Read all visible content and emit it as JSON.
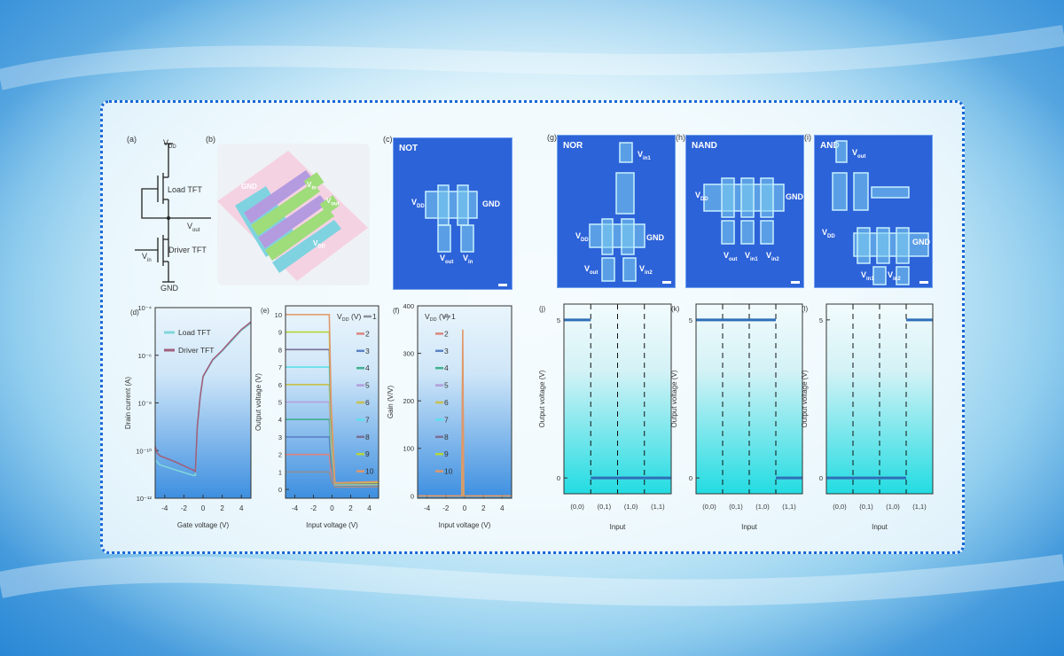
{
  "panels": {
    "a": {
      "tag": "(a)",
      "vdd": {
        "main": "V",
        "sub": "DD"
      },
      "load": "Load TFT",
      "vout": {
        "main": "V",
        "sub": "out"
      },
      "driver": "Driver TFT",
      "vin": {
        "main": "V",
        "sub": "in"
      },
      "gnd": "GND"
    },
    "b": {
      "tag": "(b)",
      "gnd": "GND",
      "vin": {
        "main": "V",
        "sub": "in"
      },
      "vout": {
        "main": "V",
        "sub": "out"
      },
      "vdd": {
        "main": "V",
        "sub": "DD"
      }
    },
    "c": {
      "tag": "(c)",
      "name": "NOT",
      "vdd": {
        "main": "V",
        "sub": "DD"
      },
      "gnd": "GND",
      "vout": {
        "main": "V",
        "sub": "out"
      },
      "vin": {
        "main": "V",
        "sub": "in"
      }
    },
    "g": {
      "tag": "(g)",
      "name": "NOR",
      "vin1": {
        "main": "V",
        "sub": "in1"
      },
      "vdd": {
        "main": "V",
        "sub": "DD"
      },
      "gnd": "GND",
      "vout": {
        "main": "V",
        "sub": "out"
      },
      "vin2": {
        "main": "V",
        "sub": "in2"
      }
    },
    "h": {
      "tag": "(h)",
      "name": "NAND",
      "vdd": {
        "main": "V",
        "sub": "DD"
      },
      "gnd": "GND",
      "vout": {
        "main": "V",
        "sub": "out"
      },
      "vin1": {
        "main": "V",
        "sub": "in1"
      },
      "vin2": {
        "main": "V",
        "sub": "in2"
      }
    },
    "i": {
      "tag": "(i)",
      "name": "AND",
      "vout": {
        "main": "V",
        "sub": "out"
      },
      "vdd": {
        "main": "V",
        "sub": "DD"
      },
      "gnd": "GND",
      "vin1": {
        "main": "V",
        "sub": "in1"
      },
      "vin2": {
        "main": "V",
        "sub": "in2"
      }
    }
  },
  "colors": {
    "border": "#1766d6",
    "micrograph": "#2d63d8",
    "plot_top": "#eaf5fc",
    "plot_bottom": "#3d8fe0",
    "logic_bottom": "#22dce2"
  },
  "chart_data": [
    {
      "id": "d",
      "tag": "(d)",
      "type": "line",
      "xlabel": "Gate voltage (V)",
      "ylabel": "Drain current (A)",
      "xlim": [
        -5,
        5
      ],
      "ylim": [
        1e-12,
        0.0001
      ],
      "yscale": "log",
      "xticks": [
        -4,
        -2,
        0,
        2,
        4
      ],
      "yticks": [
        0.0001,
        1e-06,
        1e-08,
        1e-10,
        1e-12
      ],
      "ytick_labels": [
        "10⁻⁴",
        "10⁻⁶",
        "10⁻⁸",
        "10⁻¹⁰",
        "10⁻¹²"
      ],
      "legend": "top-left",
      "series": [
        {
          "name": "Load TFT",
          "color": "#7fd6dc",
          "x": [
            -5,
            -4.5,
            -3,
            -1,
            -0.8,
            -0.6,
            -0.3,
            0,
            1,
            2,
            3,
            4,
            5
          ],
          "y": [
            4e-11,
            2.5e-11,
            1.6e-11,
            9e-12,
            9e-12,
            1e-09,
            1.8e-08,
            1.2e-07,
            6e-07,
            1.5e-06,
            4e-06,
            1.1e-05,
            2.2e-05
          ]
        },
        {
          "name": "Driver TFT",
          "color": "#a0607c",
          "x": [
            -5,
            -4.8,
            -4.5,
            -3,
            -1,
            -0.8,
            -0.6,
            -0.3,
            0,
            1,
            2,
            3,
            4,
            5
          ],
          "y": [
            1.5e-10,
            8e-11,
            6e-11,
            3.5e-11,
            1.5e-11,
            1.3e-11,
            1e-09,
            1.8e-08,
            1.3e-07,
            6.5e-07,
            1.6e-06,
            4.5e-06,
            1.2e-05,
            2.5e-05
          ]
        }
      ]
    },
    {
      "id": "e",
      "tag": "(e)",
      "type": "line",
      "xlabel": "Input voltage (V)",
      "ylabel": "Output voltage (V)",
      "xlim": [
        -5,
        5
      ],
      "ylim": [
        -0.5,
        10.5
      ],
      "xticks": [
        -4,
        -2,
        0,
        2,
        4
      ],
      "yticks": [
        0,
        1,
        2,
        3,
        4,
        5,
        6,
        7,
        8,
        9,
        10
      ],
      "legend_title": {
        "main": "V",
        "sub": "DD",
        "unit": " (V)"
      },
      "legend": "right",
      "series": [
        {
          "name": "1",
          "vdd": 1,
          "color": "#8a8f99",
          "x": [
            -5,
            -0.3,
            -0.1,
            0.3,
            5
          ],
          "y": [
            1,
            1,
            0.5,
            0.13,
            0.15
          ]
        },
        {
          "name": "2",
          "vdd": 2,
          "color": "#d9857e",
          "x": [
            -5,
            -0.3,
            -0.1,
            0.3,
            5
          ],
          "y": [
            2,
            2,
            1,
            0.16,
            0.18
          ]
        },
        {
          "name": "3",
          "vdd": 3,
          "color": "#5b82c6",
          "x": [
            -5,
            -0.3,
            -0.1,
            0.3,
            5
          ],
          "y": [
            3,
            3,
            1.5,
            0.19,
            0.21
          ]
        },
        {
          "name": "4",
          "vdd": 4,
          "color": "#3fb08f",
          "x": [
            -5,
            -0.3,
            -0.1,
            0.3,
            5
          ],
          "y": [
            4,
            4,
            2,
            0.22,
            0.24
          ]
        },
        {
          "name": "5",
          "vdd": 5,
          "color": "#b39ddb",
          "x": [
            -5,
            -0.3,
            -0.1,
            0.3,
            5
          ],
          "y": [
            5,
            5,
            2.5,
            0.25,
            0.27
          ]
        },
        {
          "name": "6",
          "vdd": 6,
          "color": "#c9c04a",
          "x": [
            -5,
            -0.3,
            -0.1,
            0.3,
            5
          ],
          "y": [
            6,
            6,
            3,
            0.28,
            0.3
          ]
        },
        {
          "name": "7",
          "vdd": 7,
          "color": "#5fe0ea",
          "x": [
            -5,
            -0.3,
            -0.1,
            0.3,
            5
          ],
          "y": [
            7,
            7,
            3.5,
            0.3,
            0.33
          ]
        },
        {
          "name": "8",
          "vdd": 8,
          "color": "#7a6f95",
          "x": [
            -5,
            -0.3,
            -0.1,
            0.3,
            5
          ],
          "y": [
            8,
            8,
            4,
            0.33,
            0.36
          ]
        },
        {
          "name": "9",
          "vdd": 9,
          "color": "#b5d63a",
          "x": [
            -5,
            -0.3,
            -0.1,
            0.3,
            5
          ],
          "y": [
            9,
            9,
            4.5,
            0.36,
            0.4
          ]
        },
        {
          "name": "10",
          "vdd": 10,
          "color": "#e0976a",
          "x": [
            -5,
            -0.3,
            -0.1,
            0.3,
            5
          ],
          "y": [
            10,
            10,
            5,
            0.38,
            0.45
          ]
        }
      ]
    },
    {
      "id": "f",
      "tag": "(f)",
      "type": "line",
      "xlabel": "Input voltage (V)",
      "ylabel": "Gain (V/V)",
      "xlim": [
        -5,
        5
      ],
      "ylim": [
        -5,
        400
      ],
      "xticks": [
        -4,
        -2,
        0,
        2,
        4
      ],
      "yticks": [
        0,
        100,
        200,
        300,
        400
      ],
      "legend_title": {
        "main": "V",
        "sub": "DD",
        "unit": " (V)"
      },
      "legend": "top-left",
      "series": [
        {
          "name": "1",
          "color": "#8a8f99",
          "x": [
            -5,
            -0.3,
            -0.2,
            -0.1,
            5
          ],
          "y": [
            0,
            0,
            10,
            0,
            0
          ]
        },
        {
          "name": "2",
          "color": "#d9857e",
          "x": [
            -5,
            -0.3,
            -0.2,
            -0.1,
            5
          ],
          "y": [
            0,
            0,
            30,
            0,
            0
          ]
        },
        {
          "name": "3",
          "color": "#5b82c6",
          "x": [
            -5,
            -0.3,
            -0.2,
            -0.1,
            5
          ],
          "y": [
            0,
            0,
            60,
            0,
            0
          ]
        },
        {
          "name": "4",
          "color": "#3fb08f",
          "x": [
            -5,
            -0.3,
            -0.2,
            -0.1,
            5
          ],
          "y": [
            0,
            0,
            90,
            0,
            0
          ]
        },
        {
          "name": "5",
          "color": "#b39ddb",
          "x": [
            -5,
            -0.3,
            -0.2,
            -0.1,
            5
          ],
          "y": [
            0,
            0,
            130,
            0,
            0
          ]
        },
        {
          "name": "6",
          "color": "#c9c04a",
          "x": [
            -5,
            -0.3,
            -0.2,
            -0.1,
            5
          ],
          "y": [
            0,
            0,
            170,
            0,
            0
          ]
        },
        {
          "name": "7",
          "color": "#5fe0ea",
          "x": [
            -5,
            -0.3,
            -0.2,
            -0.1,
            5
          ],
          "y": [
            0,
            0,
            210,
            0,
            0
          ]
        },
        {
          "name": "8",
          "color": "#7a6f95",
          "x": [
            -5,
            -0.3,
            -0.2,
            -0.1,
            5
          ],
          "y": [
            0,
            0,
            250,
            0,
            0
          ]
        },
        {
          "name": "9",
          "color": "#b5d63a",
          "x": [
            -5,
            -0.3,
            -0.2,
            -0.1,
            5
          ],
          "y": [
            0,
            0,
            290,
            0,
            0
          ]
        },
        {
          "name": "10",
          "color": "#e0976a",
          "x": [
            -5,
            -0.3,
            -0.2,
            -0.1,
            5
          ],
          "y": [
            0,
            0,
            350,
            0,
            0
          ]
        }
      ]
    },
    {
      "id": "j",
      "tag": "(j)",
      "type": "line",
      "xlabel": "Input",
      "ylabel": "Output voltage (V)",
      "categories": [
        "(0,0)",
        "(0,1)",
        "(1,0)",
        "(1,1)"
      ],
      "values": [
        5,
        0,
        0,
        0
      ],
      "ylim": [
        -0.5,
        5.5
      ],
      "yticks": [
        0,
        5
      ],
      "color": "#2f6fb8"
    },
    {
      "id": "k",
      "tag": "(k)",
      "type": "line",
      "xlabel": "Input",
      "ylabel": "Output voltage (V)",
      "categories": [
        "(0,0)",
        "(0,1)",
        "(1,0)",
        "(1,1)"
      ],
      "values": [
        5,
        5,
        5,
        0
      ],
      "ylim": [
        -0.5,
        5.5
      ],
      "yticks": [
        0,
        5
      ],
      "color": "#2f6fb8"
    },
    {
      "id": "l",
      "tag": "(l)",
      "type": "line",
      "xlabel": "Input",
      "ylabel": "Output voltage (V)",
      "categories": [
        "(0,0)",
        "(0,1)",
        "(1,0)",
        "(1,1)"
      ],
      "values": [
        0,
        0,
        0,
        5
      ],
      "ylim": [
        -0.5,
        5.5
      ],
      "yticks": [
        0,
        5
      ],
      "color": "#2f6fb8"
    }
  ]
}
